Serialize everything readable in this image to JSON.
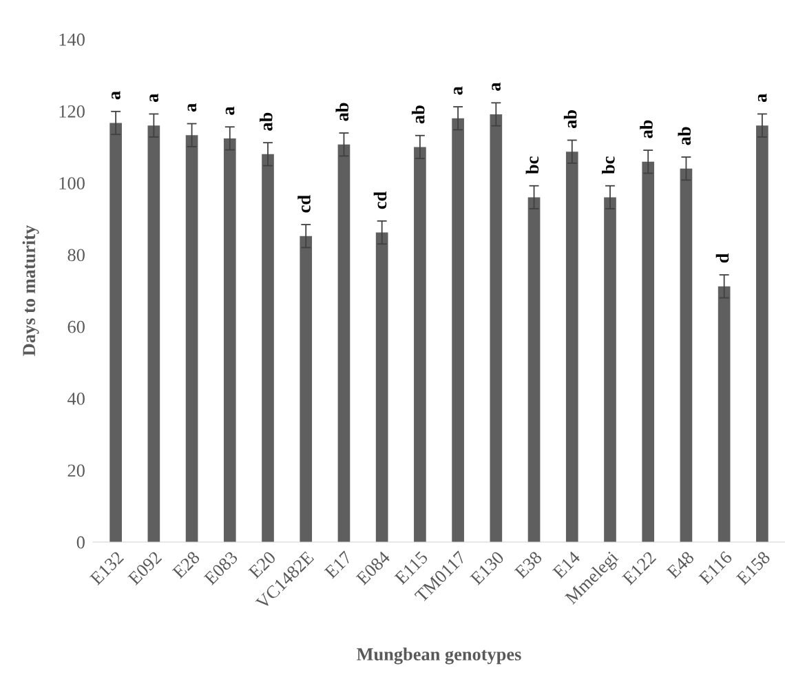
{
  "chart_data": {
    "type": "bar",
    "xlabel": "Mungbean genotypes",
    "ylabel": "Days to maturity",
    "categories": [
      "E132",
      "E092",
      "E28",
      "E083",
      "E20",
      "VC1482E",
      "E17",
      "E084",
      "E115",
      "TM0117",
      "E130",
      "E38",
      "E14",
      "Mmelegi",
      "E122",
      "E48",
      "E116",
      "E158"
    ],
    "values": [
      116.7,
      116.0,
      113.3,
      112.4,
      108.0,
      85.2,
      110.7,
      86.2,
      110.0,
      118.0,
      119.1,
      96.0,
      108.7,
      96.0,
      105.9,
      104.0,
      71.2,
      116.0
    ],
    "errors": [
      3.2,
      3.2,
      3.2,
      3.2,
      3.2,
      3.2,
      3.2,
      3.2,
      3.2,
      3.2,
      3.2,
      3.2,
      3.2,
      3.2,
      3.2,
      3.2,
      3.2,
      3.2
    ],
    "color": "#5f5f5f",
    "ylim": [
      0,
      140
    ],
    "yticks": [
      0,
      20,
      40,
      60,
      80,
      100,
      120,
      140
    ],
    "grid": false,
    "legend": false,
    "annotations": [
      "a",
      "a",
      "a",
      "a",
      "ab",
      "cd",
      "ab",
      "cd",
      "ab",
      "a",
      "a",
      "bc",
      "ab",
      "bc",
      "ab",
      "ab",
      "d",
      "a"
    ]
  }
}
